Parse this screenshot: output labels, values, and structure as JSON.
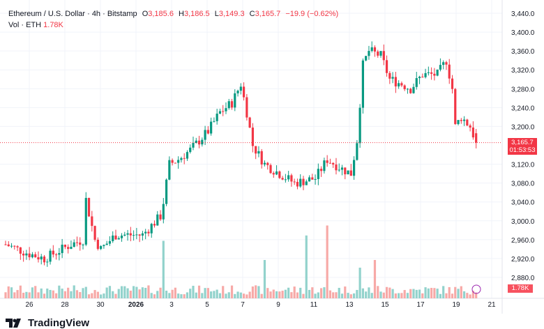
{
  "legend": {
    "symbol": "Ethereum / U.S. Dollar · 4h · Bitstamp",
    "o_label": "O",
    "o": "3,185.6",
    "h_label": "H",
    "h": "3,186.5",
    "l_label": "L",
    "l": "3,149.3",
    "c_label": "C",
    "c": "3,165.7",
    "change": "−19.9 (−0.62%)",
    "vol_label": "Vol · ETH",
    "vol": "1.78K"
  },
  "price_tag": {
    "price": "3,165.7",
    "countdown": "01:53:53"
  },
  "volume_tag": "1.78K",
  "price_axis": [
    "3,440.0",
    "3,400.0",
    "3,360.0",
    "3,320.0",
    "3,280.0",
    "3,240.0",
    "3,200.0",
    "3,120.0",
    "3,080.0",
    "3,040.0",
    "3,000.0",
    "2,960.0",
    "2,920.0",
    "2,880.0"
  ],
  "time_axis": [
    "26",
    "28",
    "30",
    "2026",
    "3",
    "5",
    "7",
    "9",
    "11",
    "13",
    "15",
    "17",
    "19",
    "21"
  ],
  "brand": "TradingView",
  "colors": {
    "up": "#089981",
    "down": "#f23645",
    "vol_up": "#92d2cc",
    "vol_down": "#f7a9a7"
  },
  "chart_data": {
    "type": "candlestick",
    "last_close": 3165.7,
    "path": [
      [
        0,
        2950
      ],
      [
        8,
        2930
      ],
      [
        13,
        2920
      ],
      [
        22,
        2950
      ],
      [
        26,
        2960
      ],
      [
        27,
        3045
      ],
      [
        30,
        2960
      ],
      [
        32,
        2940
      ],
      [
        37,
        2970
      ],
      [
        46,
        2970
      ],
      [
        52,
        3010
      ],
      [
        53,
        3040
      ],
      [
        55,
        3120
      ],
      [
        58,
        3130
      ],
      [
        62,
        3150
      ],
      [
        68,
        3190
      ],
      [
        72,
        3230
      ],
      [
        76,
        3250
      ],
      [
        79,
        3290
      ],
      [
        81,
        3230
      ],
      [
        83,
        3160
      ],
      [
        87,
        3120
      ],
      [
        92,
        3100
      ],
      [
        97,
        3080
      ],
      [
        104,
        3090
      ],
      [
        108,
        3130
      ],
      [
        113,
        3110
      ],
      [
        116,
        3100
      ],
      [
        118,
        3170
      ],
      [
        120,
        3330
      ],
      [
        122,
        3360
      ],
      [
        126,
        3350
      ],
      [
        129,
        3300
      ],
      [
        133,
        3290
      ],
      [
        136,
        3280
      ],
      [
        140,
        3310
      ],
      [
        145,
        3310
      ],
      [
        148,
        3340
      ],
      [
        150,
        3280
      ],
      [
        151,
        3200
      ],
      [
        153,
        3220
      ],
      [
        156,
        3200
      ],
      [
        158,
        3165.7
      ]
    ],
    "volume_spikes": [
      [
        53,
        0.75
      ],
      [
        87,
        0.5
      ],
      [
        101,
        0.82
      ],
      [
        108,
        0.95
      ],
      [
        124,
        0.5
      ],
      [
        119,
        0.4
      ]
    ]
  }
}
